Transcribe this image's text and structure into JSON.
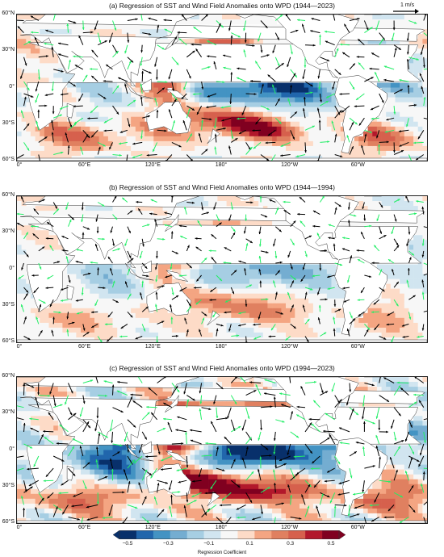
{
  "panels": [
    {
      "id": "a",
      "title": "(a) Regression of SST and Wind Field Anomalies onto WPD (1944—2023)",
      "scale_label": "1 m/s",
      "intensity": 1.0
    },
    {
      "id": "b",
      "title": "(b) Regression of SST and Wind Field Anomalies onto WPD (1944—1994)",
      "scale_label": "",
      "intensity": 0.55
    },
    {
      "id": "c",
      "title": "(c) Regression of SST and Wind Field Anomalies onto WPD (1994—2023)",
      "scale_label": "",
      "intensity": 1.25
    }
  ],
  "lat_labels": [
    "60°N",
    "30°N",
    "0°",
    "30°S",
    "60°S"
  ],
  "lon_labels": [
    "0°",
    "60°E",
    "120°E",
    "180°",
    "120°W",
    "60°W"
  ],
  "colorbar": {
    "ticks": [
      "−0.5",
      "−0.3",
      "−0.1",
      "0.1",
      "0.3",
      "0.5"
    ],
    "title": "Regression Coefficient",
    "colors": [
      "#08306b",
      "#2166ac",
      "#4393c3",
      "#74add1",
      "#a6cee3",
      "#d1e5f0",
      "#f7f7f7",
      "#fddbc7",
      "#f4a582",
      "#e08060",
      "#d6604d",
      "#b2182b",
      "#800020"
    ]
  },
  "colors": {
    "vector_sig": "#22ee66",
    "vector": "#000000",
    "land": "#ffffff"
  }
}
